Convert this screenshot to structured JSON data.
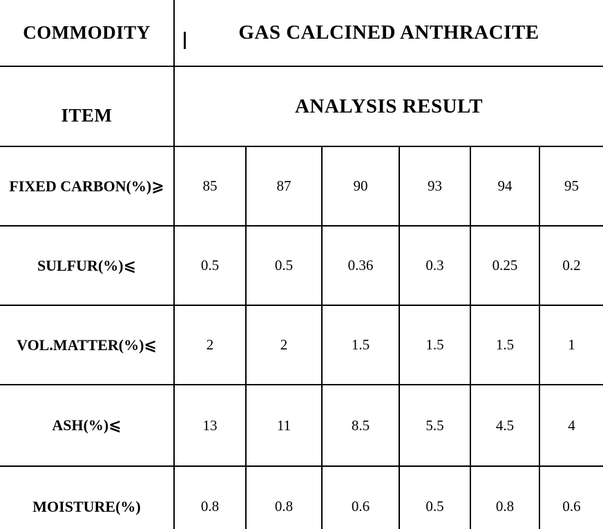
{
  "table": {
    "colors": {
      "border": "#000000",
      "text": "#000000",
      "background": "#ffffff"
    },
    "header": {
      "commodity_label": "COMMODITY",
      "commodity_value": "GAS CALCINED ANTHRACITE",
      "item_label": "ITEM",
      "item_value": "ANALYSIS RESULT"
    },
    "rows": [
      {
        "label": "FIXED CARBON(%)⩾",
        "values": [
          "85",
          "87",
          "90",
          "93",
          "94",
          "95"
        ]
      },
      {
        "label": "SULFUR(%)⩽",
        "values": [
          "0.5",
          "0.5",
          "0.36",
          "0.3",
          "0.25",
          "0.2"
        ]
      },
      {
        "label": "VOL.MATTER(%)⩽",
        "values": [
          "2",
          "2",
          "1.5",
          "1.5",
          "1.5",
          "1"
        ]
      },
      {
        "label": "ASH(%)⩽",
        "values": [
          "13",
          "11",
          "8.5",
          "5.5",
          "4.5",
          "4"
        ]
      },
      {
        "label": "MOISTURE(%)",
        "values": [
          "0.8",
          "0.8",
          "0.6",
          "0.5",
          "0.8",
          "0.6"
        ]
      }
    ]
  }
}
